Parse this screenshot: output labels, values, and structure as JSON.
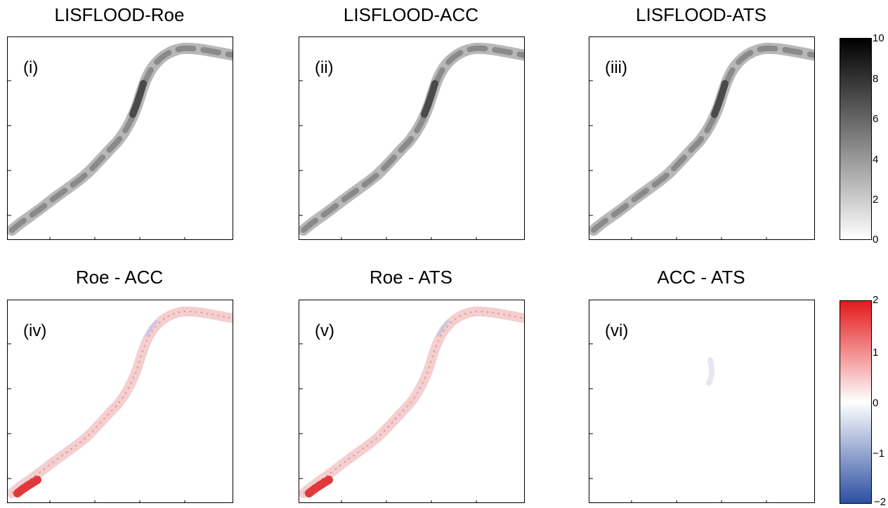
{
  "chart_data": [
    {
      "type": "heatmap",
      "title": "LISFLOOD-Roe",
      "panel_label": "(i)",
      "colorscale": "gray",
      "clim": [
        0,
        10
      ]
    },
    {
      "type": "heatmap",
      "title": "LISFLOOD-ACC",
      "panel_label": "(ii)",
      "colorscale": "gray",
      "clim": [
        0,
        10
      ]
    },
    {
      "type": "heatmap",
      "title": "LISFLOOD-ATS",
      "panel_label": "(iii)",
      "colorscale": "gray",
      "clim": [
        0,
        10
      ]
    },
    {
      "type": "heatmap",
      "title": "Roe - ACC",
      "panel_label": "(iv)",
      "colorscale": "blue-white-red",
      "clim": [
        -2,
        2
      ]
    },
    {
      "type": "heatmap",
      "title": "Roe - ATS",
      "panel_label": "(v)",
      "colorscale": "blue-white-red",
      "clim": [
        -2,
        2
      ]
    },
    {
      "type": "heatmap",
      "title": "ACC - ATS",
      "panel_label": "(vi)",
      "colorscale": "blue-white-red",
      "clim": [
        -2,
        2
      ]
    }
  ],
  "colorbars": [
    {
      "name": "depth",
      "ticks": [
        "10",
        "8",
        "6",
        "4",
        "2",
        "0"
      ],
      "colors": [
        "#000000",
        "#ffffff"
      ]
    },
    {
      "name": "difference",
      "ticks": [
        "2",
        "1",
        "0",
        "−1",
        "−2"
      ],
      "colors": [
        "#e31a1c",
        "#ffffff",
        "#2c4ea3"
      ]
    }
  ]
}
